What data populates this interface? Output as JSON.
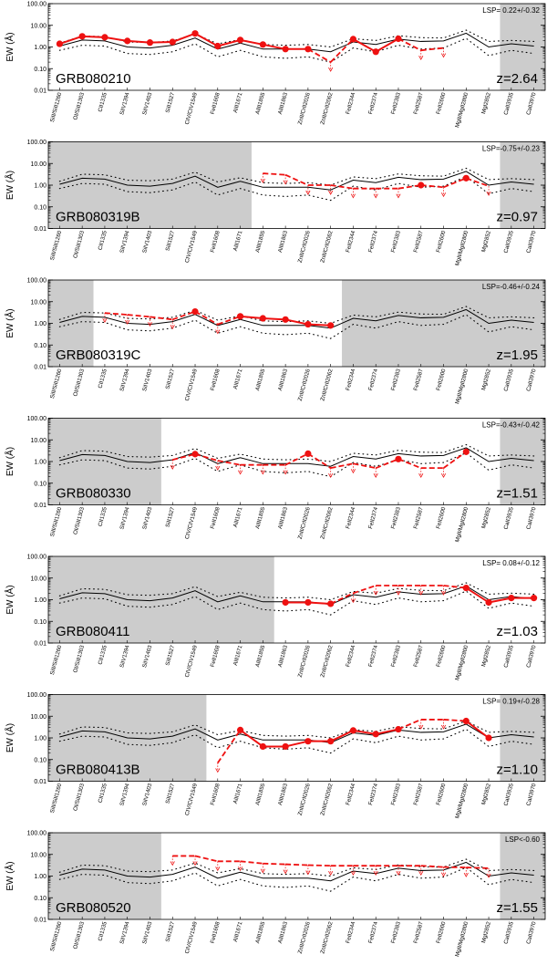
{
  "chart_data": {
    "type": "line",
    "ylabel": "EW (Å)",
    "yscale": "log",
    "ylim": [
      0.01,
      100
    ],
    "yticks": [
      "0.01",
      "0.10",
      "1.00",
      "10.00",
      "100.00"
    ],
    "lines": [
      "SiII/SiII1260",
      "OI/SiII1303",
      "CII1335",
      "SiIV1394",
      "SiIV1403",
      "SiII1527",
      "CIV/CIV1549",
      "FeII1608",
      "AlII1671",
      "AlIII1855",
      "AlIII1863",
      "ZnII/CrII2026",
      "ZnII/CrII2062",
      "FeII2344",
      "FeII2374",
      "FeII2383",
      "FeII2587",
      "FeII2600",
      "MgII/MgII2800",
      "MgI2852",
      "CaII3935",
      "CaII3970"
    ],
    "reference_mean": [
      1.1,
      2.1,
      1.9,
      1.0,
      0.9,
      1.2,
      2.6,
      0.8,
      1.5,
      0.8,
      0.8,
      0.8,
      0.6,
      1.7,
      1.3,
      2.3,
      1.8,
      1.9,
      4.3,
      1.0,
      1.4,
      1.1
    ],
    "reference_upper": [
      1.5,
      3.2,
      3.0,
      1.7,
      1.6,
      1.9,
      4.0,
      1.4,
      2.2,
      1.3,
      1.2,
      1.3,
      1.0,
      2.4,
      2.0,
      3.3,
      2.7,
      2.6,
      6.0,
      1.8,
      2.0,
      1.8
    ],
    "reference_lower": [
      0.7,
      1.2,
      1.1,
      0.5,
      0.45,
      0.6,
      1.4,
      0.35,
      0.7,
      0.35,
      0.3,
      0.35,
      0.2,
      0.9,
      0.6,
      1.2,
      0.8,
      0.9,
      2.5,
      0.4,
      0.7,
      0.5
    ],
    "panels": [
      {
        "grb": "GRB080210",
        "z": "z=2.64",
        "lsp": "LSP= 0.22+/-0.32",
        "shade": [
          [
            19.5,
            21.5
          ]
        ],
        "points": [
          [
            0,
            1.4,
            "f"
          ],
          [
            1,
            3.1,
            "f"
          ],
          [
            2,
            2.8,
            "f"
          ],
          [
            3,
            1.9,
            "f"
          ],
          [
            4,
            1.6,
            "f"
          ],
          [
            5,
            1.7,
            "f"
          ],
          [
            6,
            4.2,
            "f"
          ],
          [
            7,
            1.1,
            "f"
          ],
          [
            8,
            2.1,
            "f"
          ],
          [
            9,
            1.3,
            "f"
          ],
          [
            10,
            0.8,
            "f"
          ],
          [
            11,
            0.8,
            "f"
          ],
          [
            12,
            0.2,
            "u"
          ],
          [
            13,
            2.3,
            "f"
          ],
          [
            14,
            0.6,
            "f"
          ],
          [
            15,
            2.4,
            "f"
          ],
          [
            16,
            0.7,
            "u"
          ],
          [
            17,
            0.9,
            "u"
          ]
        ]
      },
      {
        "grb": "GRB080319B",
        "z": "z=0.97",
        "lsp": "LSP=-0.75+/-0.23",
        "shade": [
          [
            -0.5,
            8.5
          ],
          [
            19.5,
            21.5
          ]
        ],
        "points": [
          [
            9,
            3.5,
            "u"
          ],
          [
            10,
            3.0,
            "u"
          ],
          [
            11,
            1.0,
            "u"
          ],
          [
            12,
            1.0,
            "u"
          ],
          [
            13,
            0.7,
            "u"
          ],
          [
            14,
            0.7,
            "u"
          ],
          [
            15,
            0.7,
            "u"
          ],
          [
            16,
            1.0,
            "f"
          ],
          [
            17,
            0.8,
            "u"
          ],
          [
            18,
            2.1,
            "f"
          ],
          [
            19,
            0.9,
            "u"
          ]
        ]
      },
      {
        "grb": "GRB080319C",
        "z": "z=1.95",
        "lsp": "LSP=-0.46+/-0.24",
        "shade": [
          [
            -0.5,
            1.5
          ],
          [
            12.5,
            21.5
          ]
        ],
        "points": [
          [
            2,
            3.0,
            "u"
          ],
          [
            3,
            2.5,
            "u"
          ],
          [
            4,
            2.0,
            "u"
          ],
          [
            5,
            1.5,
            "u"
          ],
          [
            6,
            3.5,
            "f"
          ],
          [
            7,
            0.9,
            "u"
          ],
          [
            8,
            2.1,
            "f"
          ],
          [
            9,
            1.7,
            "f"
          ],
          [
            10,
            1.5,
            "f"
          ],
          [
            11,
            0.9,
            "f"
          ],
          [
            12,
            0.8,
            "f"
          ]
        ]
      },
      {
        "grb": "GRB080330",
        "z": "z=1.51",
        "lsp": "LSP=-0.43+/-0.42",
        "shade": [
          [
            -0.5,
            4.5
          ],
          [
            19.5,
            21.5
          ]
        ],
        "points": [
          [
            5,
            1.2,
            "u"
          ],
          [
            6,
            2.2,
            "f"
          ],
          [
            7,
            1.1,
            "u"
          ],
          [
            8,
            0.7,
            "u"
          ],
          [
            9,
            0.7,
            "u"
          ],
          [
            10,
            0.7,
            "u"
          ],
          [
            11,
            2.3,
            "f"
          ],
          [
            12,
            0.5,
            "u"
          ],
          [
            13,
            0.8,
            "u"
          ],
          [
            14,
            0.5,
            "u"
          ],
          [
            15,
            1.3,
            "f"
          ],
          [
            16,
            0.5,
            "u"
          ],
          [
            17,
            0.5,
            "u"
          ],
          [
            18,
            2.8,
            "f"
          ]
        ]
      },
      {
        "grb": "GRB080411",
        "z": "z=1.03",
        "lsp": "LSP= 0.08+/-0.12",
        "shade": [
          [
            -0.5,
            9.5
          ]
        ],
        "points": [
          [
            10,
            0.75,
            "f"
          ],
          [
            11,
            0.75,
            "f"
          ],
          [
            12,
            0.65,
            "f"
          ],
          [
            13,
            2.0,
            "u"
          ],
          [
            14,
            4.5,
            "u"
          ],
          [
            15,
            4.5,
            "u"
          ],
          [
            16,
            4.5,
            "u"
          ],
          [
            17,
            4.5,
            "u"
          ],
          [
            18,
            3.5,
            "f"
          ],
          [
            19,
            0.75,
            "f"
          ],
          [
            20,
            1.2,
            "f"
          ],
          [
            21,
            1.2,
            "f"
          ]
        ]
      },
      {
        "grb": "GRB080413B",
        "z": "z=1.10",
        "lsp": "LSP= 0.19+/-0.28",
        "shade": [
          [
            -0.5,
            6.5
          ],
          [
            19.5,
            21.5
          ]
        ],
        "points": [
          [
            7,
            0.07,
            "u"
          ],
          [
            8,
            2.3,
            "f"
          ],
          [
            9,
            0.4,
            "f"
          ],
          [
            10,
            0.4,
            "f"
          ],
          [
            11,
            0.7,
            "f"
          ],
          [
            12,
            0.7,
            "f"
          ],
          [
            13,
            2.2,
            "f"
          ],
          [
            14,
            1.5,
            "f"
          ],
          [
            15,
            2.5,
            "f"
          ],
          [
            16,
            7.0,
            "u"
          ],
          [
            17,
            7.0,
            "u"
          ],
          [
            18,
            6.0,
            "f"
          ],
          [
            19,
            1.0,
            "f"
          ]
        ]
      },
      {
        "grb": "GRB080520",
        "z": "z=1.55",
        "lsp": "LSP<-0.60",
        "shade": [
          [
            -0.5,
            4.5
          ],
          [
            19.5,
            21.5
          ]
        ],
        "points": [
          [
            5,
            8.5,
            "u"
          ],
          [
            6,
            8.5,
            "u"
          ],
          [
            7,
            4.8,
            "u"
          ],
          [
            8,
            4.8,
            "u"
          ],
          [
            9,
            3.8,
            "u"
          ],
          [
            10,
            3.5,
            "u"
          ],
          [
            11,
            3.2,
            "u"
          ],
          [
            12,
            3.0,
            "u"
          ],
          [
            13,
            3.0,
            "u"
          ],
          [
            14,
            3.0,
            "u"
          ],
          [
            15,
            3.0,
            "u"
          ],
          [
            16,
            3.0,
            "u"
          ],
          [
            17,
            2.6,
            "u"
          ],
          [
            18,
            2.5,
            "u"
          ],
          [
            19,
            2.3,
            "u"
          ]
        ]
      }
    ],
    "colors": {
      "data": "#ee1111",
      "mean": "#000000",
      "shade": "#cccccc",
      "frame": "#000000"
    }
  }
}
